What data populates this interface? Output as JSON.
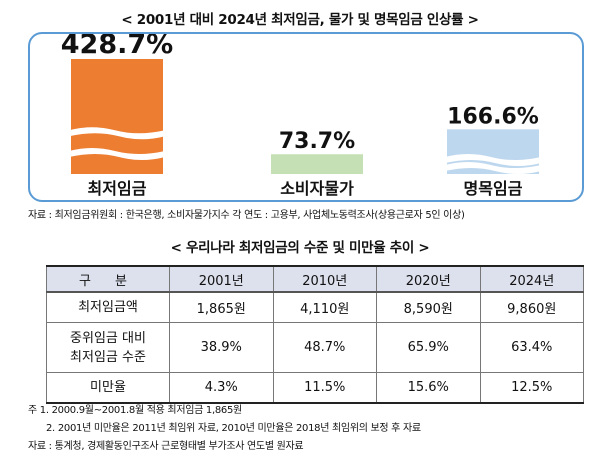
{
  "chart_data": {
    "type": "bar",
    "title": "< 2001년 대비 2024년 최저임금, 물가 및 명목임금 인상률 >",
    "categories": [
      "최저임금",
      "소비자물가",
      "명목임금"
    ],
    "values": [
      428.7,
      73.7,
      166.6
    ],
    "value_labels": [
      "428.7%",
      "73.7%",
      "166.6%"
    ],
    "colors": [
      "#ed7d31",
      "#c5e0b4",
      "#bdd7ee"
    ],
    "unit": "%"
  },
  "source_chart": "자료 : 최저임금위원회 : 한국은행, 소비자물가지수 각 연도 : 고용부, 사업체노동력조사(상용근로자 5인 이상)",
  "table": {
    "title": "< 우리나라 최저임금의 수준 및 미만율 추이 >",
    "headers": [
      "구 분",
      "2001년",
      "2010년",
      "2020년",
      "2024년"
    ],
    "rows": [
      {
        "label_lines": [
          "최저임금액"
        ],
        "cells": [
          "1,865원",
          "4,110원",
          "8,590원",
          "9,860원"
        ]
      },
      {
        "label_lines": [
          "중위임금 대비",
          "최저임금 수준"
        ],
        "cells": [
          "38.9%",
          "48.7%",
          "65.9%",
          "63.4%"
        ]
      },
      {
        "label_lines": [
          "미만율"
        ],
        "cells": [
          "4.3%",
          "11.5%",
          "15.6%",
          "12.5%"
        ]
      }
    ]
  },
  "notes": [
    "주 1. 2000.9월~2001.8월 적용 최저임금 1,865원",
    "2. 2001년 미만율은 2011년 최임위 자료, 2010년 미만율은 2018년 최임위의 보정 후 자료",
    "자료 : 통계청, 경제활동인구조사 근로형태별 부가조사 연도별 원자료"
  ]
}
